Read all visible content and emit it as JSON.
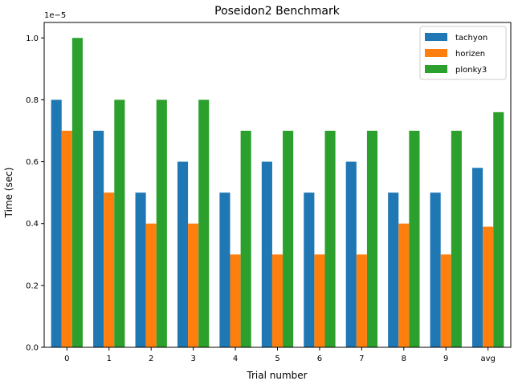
{
  "chart_data": {
    "type": "bar",
    "title": "Poseidon2 Benchmark",
    "xlabel": "Trial number",
    "ylabel": "Time (sec)",
    "y_offset_label": "1e−5",
    "ylim": [
      0,
      1.05
    ],
    "yticks": [
      "0.0",
      "0.2",
      "0.4",
      "0.6",
      "0.8",
      "1.0"
    ],
    "categories": [
      "0",
      "1",
      "2",
      "3",
      "4",
      "5",
      "6",
      "7",
      "8",
      "9",
      "avg"
    ],
    "series": [
      {
        "name": "tachyon",
        "color": "#1f77b4",
        "values": [
          0.8,
          0.7,
          0.5,
          0.6,
          0.5,
          0.6,
          0.5,
          0.6,
          0.5,
          0.5,
          0.58
        ]
      },
      {
        "name": "horizen",
        "color": "#ff7f0e",
        "values": [
          0.7,
          0.5,
          0.4,
          0.4,
          0.3,
          0.3,
          0.3,
          0.3,
          0.4,
          0.3,
          0.39
        ]
      },
      {
        "name": "plonky3",
        "color": "#2ca02c",
        "values": [
          1.0,
          0.8,
          0.8,
          0.8,
          0.7,
          0.7,
          0.7,
          0.7,
          0.7,
          0.7,
          0.76
        ]
      }
    ],
    "grid": false,
    "legend": "top-right"
  }
}
